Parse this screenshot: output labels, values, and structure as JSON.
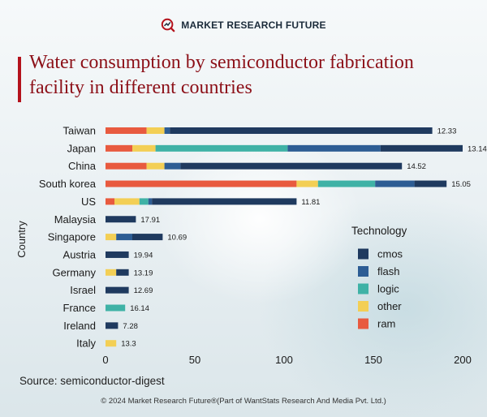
{
  "header": {
    "brand": "MARKET RESEARCH FUTURE",
    "title": "Water consumption by semiconductor fabrication facility in different countries"
  },
  "colors": {
    "cmos": "#1f3a5f",
    "flash": "#2d5d94",
    "logic": "#3fb2a6",
    "other": "#f3cf55",
    "ram": "#e85a3f",
    "accent": "#b4121c"
  },
  "chart_data": {
    "type": "bar",
    "orientation": "horizontal",
    "stacked": true,
    "title": "Water consumption by semiconductor fabrication facility in different countries",
    "xlabel": "",
    "ylabel": "Country",
    "xlim": [
      0,
      200
    ],
    "xticks": [
      0,
      50,
      100,
      150,
      200
    ],
    "grid": false,
    "legend_title": "Technology",
    "legend_position": "right",
    "series_names": [
      "ram",
      "other",
      "logic",
      "flash",
      "cmos"
    ],
    "legend_order": [
      "cmos",
      "flash",
      "logic",
      "other",
      "ram"
    ],
    "categories": [
      "Taiwan",
      "Japan",
      "China",
      "South korea",
      "US",
      "Malaysia",
      "Singapore",
      "Austria",
      "Germany",
      "Israel",
      "France",
      "Ireland",
      "Italy"
    ],
    "rows": [
      {
        "country": "Taiwan",
        "segments": {
          "ram": 23,
          "other": 10,
          "logic": 0,
          "flash": 3,
          "cmos": 147
        },
        "label": "12.33"
      },
      {
        "country": "Japan",
        "segments": {
          "ram": 15,
          "other": 13,
          "logic": 74,
          "flash": 52,
          "cmos": 46
        },
        "label": "13.14"
      },
      {
        "country": "China",
        "segments": {
          "ram": 23,
          "other": 10,
          "logic": 0,
          "flash": 9,
          "cmos": 124
        },
        "label": "14.52"
      },
      {
        "country": "South korea",
        "segments": {
          "ram": 107,
          "other": 12,
          "logic": 32,
          "flash": 22,
          "cmos": 18
        },
        "label": "15.05"
      },
      {
        "country": "US",
        "segments": {
          "ram": 5,
          "other": 14,
          "logic": 5,
          "flash": 2,
          "cmos": 81
        },
        "label": "11.81"
      },
      {
        "country": "Malaysia",
        "segments": {
          "ram": 0,
          "other": 0,
          "logic": 0,
          "flash": 0,
          "cmos": 17
        },
        "label": "17.91"
      },
      {
        "country": "Singapore",
        "segments": {
          "ram": 0,
          "other": 6,
          "logic": 0,
          "flash": 9,
          "cmos": 17
        },
        "label": "10.69"
      },
      {
        "country": "Austria",
        "segments": {
          "ram": 0,
          "other": 0,
          "logic": 0,
          "flash": 0,
          "cmos": 13
        },
        "label": "19.94"
      },
      {
        "country": "Germany",
        "segments": {
          "ram": 0,
          "other": 6,
          "logic": 0,
          "flash": 0,
          "cmos": 7
        },
        "label": "13.19"
      },
      {
        "country": "Israel",
        "segments": {
          "ram": 0,
          "other": 0,
          "logic": 0,
          "flash": 0,
          "cmos": 13
        },
        "label": "12.69"
      },
      {
        "country": "France",
        "segments": {
          "ram": 0,
          "other": 0,
          "logic": 11,
          "flash": 0,
          "cmos": 0
        },
        "label": "16.14"
      },
      {
        "country": "Ireland",
        "segments": {
          "ram": 0,
          "other": 0,
          "logic": 0,
          "flash": 0,
          "cmos": 7
        },
        "label": "7.28"
      },
      {
        "country": "Italy",
        "segments": {
          "ram": 0,
          "other": 6,
          "logic": 0,
          "flash": 0,
          "cmos": 0
        },
        "label": "13.3"
      }
    ]
  },
  "footer": {
    "source": "Source: semiconductor-digest",
    "copyright": "© 2024 Market Research Future®(Part of WantStats Research And Media Pvt. Ltd.)"
  }
}
